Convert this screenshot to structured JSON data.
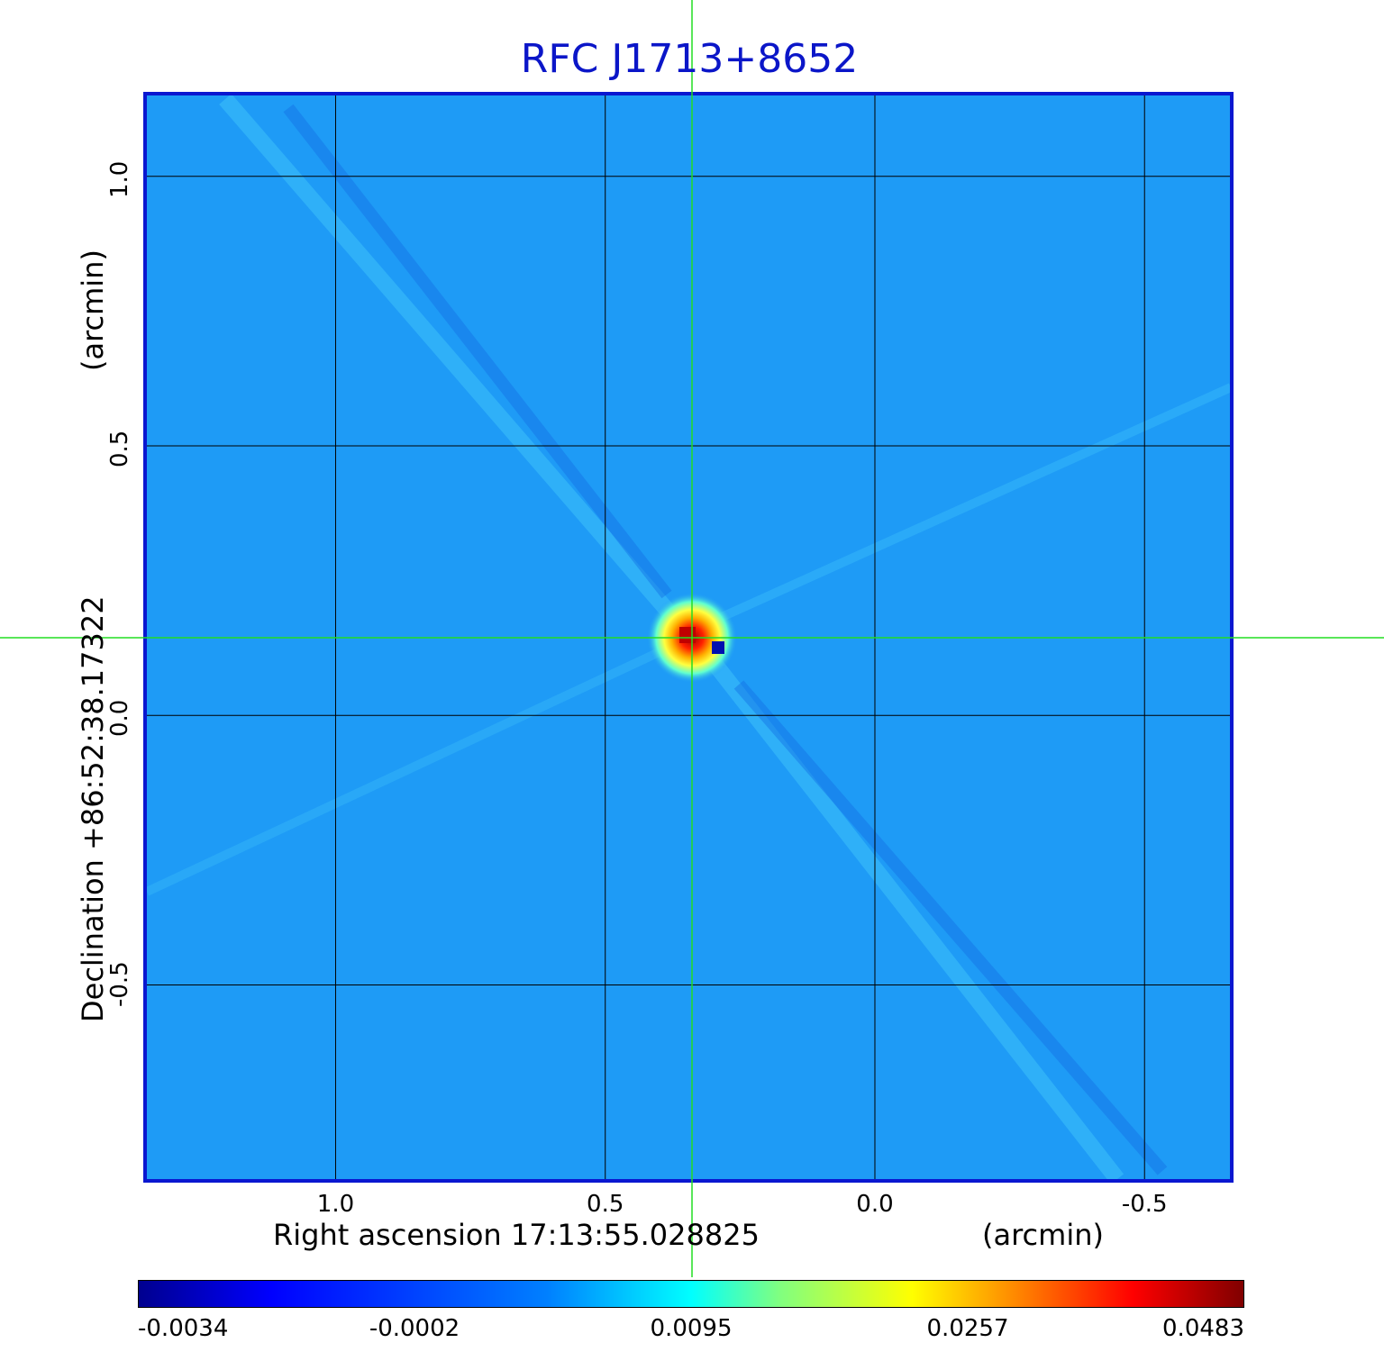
{
  "title": "RFC J1713+8652",
  "chart_data": {
    "type": "heatmap",
    "title": "RFC J1713+8652",
    "xlabel": "Right ascension  17:13:55.028825",
    "xunit": "(arcmin)",
    "ylabel": "Declination  +86:52:38.17322",
    "yunit": "(arcmin)",
    "x_ticks": [
      "1.0",
      "0.5",
      "0.0",
      "-0.5"
    ],
    "x_tick_values": [
      1.0,
      0.5,
      0.0,
      -0.5
    ],
    "y_ticks": [
      "1.0",
      "0.5",
      "0.0",
      "-0.5"
    ],
    "y_tick_values": [
      1.0,
      0.5,
      0.0,
      -0.5
    ],
    "xlim": [
      1.35,
      -0.66
    ],
    "ylim": [
      -0.86,
      1.15
    ],
    "grid": true,
    "source_peak": {
      "x": 0.34,
      "y": 0.14,
      "value": 0.0483
    },
    "colorbar": {
      "colormap": "jet",
      "tick_labels": [
        "-0.0034",
        "-0.0002",
        "0.0095",
        "0.0257",
        "0.0483"
      ],
      "values": [
        -0.0034,
        -0.0002,
        0.0095,
        0.0257,
        0.0483
      ]
    }
  },
  "colors": {
    "title": "#0b16c8",
    "frame": "#0a17d0",
    "background_map": "#1e9bf6",
    "crosshair": "#22dd22",
    "grid": "#000000"
  }
}
